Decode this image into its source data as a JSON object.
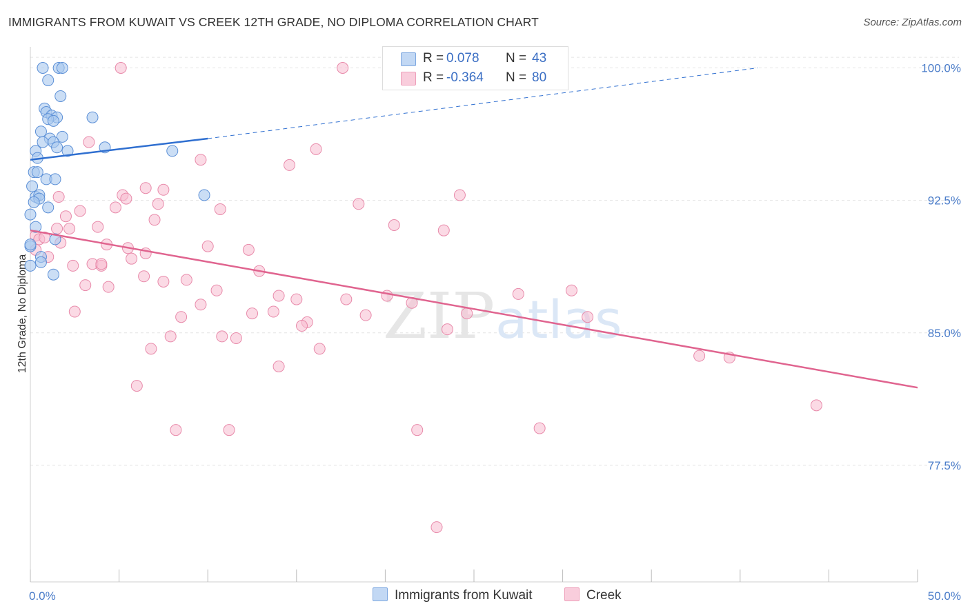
{
  "title": "IMMIGRANTS FROM KUWAIT VS CREEK 12TH GRADE, NO DIPLOMA CORRELATION CHART",
  "source": "Source: ZipAtlas.com",
  "watermark": {
    "zip": "ZIP",
    "atlas": "atlas"
  },
  "legend": {
    "r_label": "R =",
    "n_label": "N =",
    "series": [
      {
        "name": "Immigrants from Kuwait",
        "r": "0.078",
        "n": "43"
      },
      {
        "name": "Creek",
        "r": "-0.364",
        "n": "80"
      }
    ]
  },
  "colors": {
    "kuwait_fill": "#a9c8ef",
    "kuwait_stroke": "#5b8fd6",
    "kuwait_line": "#2f6fd0",
    "creek_fill": "#f7bcd0",
    "creek_stroke": "#e88aaa",
    "creek_line": "#e0648f",
    "tick_text": "#4a7cc9",
    "grid": "#e4e4e4"
  },
  "chart_data": {
    "type": "scatter",
    "title": "IMMIGRANTS FROM KUWAIT VS CREEK 12TH GRADE, NO DIPLOMA CORRELATION CHART",
    "xlabel": "",
    "ylabel": "12th Grade, No Diploma",
    "xlim": [
      0,
      50
    ],
    "ylim": [
      70.9,
      100.8
    ],
    "x_tick_labels": [
      "0.0%",
      "50.0%"
    ],
    "y_ticks": [
      77.5,
      85.0,
      92.5,
      100.0
    ],
    "y_tick_labels": [
      "77.5%",
      "85.0%",
      "92.5%",
      "100.0%"
    ],
    "grid": true,
    "legend_position": "top-center",
    "series": [
      {
        "name": "Immigrants from Kuwait",
        "points": [
          [
            0.7,
            100.0
          ],
          [
            1.6,
            100.0
          ],
          [
            1.8,
            100.0
          ],
          [
            1.0,
            99.3
          ],
          [
            1.7,
            98.4
          ],
          [
            0.8,
            97.7
          ],
          [
            0.9,
            97.5
          ],
          [
            1.2,
            97.3
          ],
          [
            1.5,
            97.2
          ],
          [
            3.5,
            97.2
          ],
          [
            1.0,
            97.1
          ],
          [
            1.3,
            97.0
          ],
          [
            0.6,
            96.4
          ],
          [
            1.1,
            96.0
          ],
          [
            1.8,
            96.1
          ],
          [
            0.7,
            95.8
          ],
          [
            1.3,
            95.8
          ],
          [
            1.5,
            95.5
          ],
          [
            2.1,
            95.3
          ],
          [
            4.2,
            95.5
          ],
          [
            0.3,
            95.3
          ],
          [
            8.0,
            95.3
          ],
          [
            0.4,
            94.9
          ],
          [
            0.2,
            94.1
          ],
          [
            0.4,
            94.1
          ],
          [
            0.9,
            93.7
          ],
          [
            1.4,
            93.7
          ],
          [
            0.1,
            93.3
          ],
          [
            0.3,
            92.7
          ],
          [
            0.5,
            92.8
          ],
          [
            0.5,
            92.6
          ],
          [
            9.8,
            92.8
          ],
          [
            0.2,
            92.4
          ],
          [
            1.0,
            92.1
          ],
          [
            0.0,
            91.7
          ],
          [
            0.3,
            91.0
          ],
          [
            1.4,
            90.3
          ],
          [
            0.0,
            89.9
          ],
          [
            0.6,
            89.3
          ],
          [
            0.6,
            89.0
          ],
          [
            1.3,
            88.3
          ],
          [
            0.0,
            88.8
          ],
          [
            0.0,
            90.0
          ]
        ],
        "trend": {
          "x": [
            0,
            10
          ],
          "y": [
            94.8,
            96.0
          ],
          "extended_x": [
            10,
            41
          ],
          "extended_y": [
            96.0,
            100.0
          ]
        }
      },
      {
        "name": "Creek",
        "points": [
          [
            5.1,
            100.0
          ],
          [
            17.6,
            100.0
          ],
          [
            3.3,
            95.8
          ],
          [
            9.6,
            94.8
          ],
          [
            16.1,
            95.4
          ],
          [
            14.6,
            94.5
          ],
          [
            6.5,
            93.2
          ],
          [
            7.5,
            93.1
          ],
          [
            5.2,
            92.8
          ],
          [
            1.6,
            92.7
          ],
          [
            5.4,
            92.6
          ],
          [
            10.7,
            92.0
          ],
          [
            7.2,
            92.3
          ],
          [
            18.5,
            92.3
          ],
          [
            24.2,
            92.8
          ],
          [
            4.8,
            92.1
          ],
          [
            2.8,
            91.9
          ],
          [
            2.0,
            91.6
          ],
          [
            7.0,
            91.4
          ],
          [
            3.8,
            91.0
          ],
          [
            1.5,
            90.9
          ],
          [
            2.2,
            90.9
          ],
          [
            20.5,
            91.1
          ],
          [
            23.3,
            90.8
          ],
          [
            0.3,
            90.5
          ],
          [
            0.5,
            90.3
          ],
          [
            1.7,
            90.1
          ],
          [
            4.3,
            90.0
          ],
          [
            5.5,
            89.8
          ],
          [
            10.0,
            89.9
          ],
          [
            12.3,
            89.7
          ],
          [
            6.5,
            89.5
          ],
          [
            5.7,
            89.2
          ],
          [
            0.3,
            89.7
          ],
          [
            1.0,
            89.3
          ],
          [
            2.4,
            88.8
          ],
          [
            3.5,
            88.9
          ],
          [
            4.0,
            88.8
          ],
          [
            12.9,
            88.5
          ],
          [
            6.4,
            88.2
          ],
          [
            7.5,
            87.9
          ],
          [
            8.8,
            88.0
          ],
          [
            3.1,
            87.7
          ],
          [
            4.4,
            87.6
          ],
          [
            10.5,
            87.4
          ],
          [
            14.0,
            87.1
          ],
          [
            15.0,
            86.9
          ],
          [
            17.8,
            86.9
          ],
          [
            21.5,
            86.7
          ],
          [
            27.5,
            87.2
          ],
          [
            30.5,
            87.4
          ],
          [
            9.6,
            86.6
          ],
          [
            12.5,
            86.1
          ],
          [
            18.9,
            86.0
          ],
          [
            24.6,
            86.1
          ],
          [
            31.4,
            85.9
          ],
          [
            2.5,
            86.2
          ],
          [
            8.5,
            85.9
          ],
          [
            15.6,
            85.6
          ],
          [
            15.3,
            85.4
          ],
          [
            23.5,
            85.2
          ],
          [
            7.9,
            84.8
          ],
          [
            10.8,
            84.8
          ],
          [
            11.6,
            84.7
          ],
          [
            6.8,
            84.1
          ],
          [
            16.3,
            84.1
          ],
          [
            14.0,
            83.1
          ],
          [
            37.7,
            83.7
          ],
          [
            39.4,
            83.6
          ],
          [
            6.0,
            82.0
          ],
          [
            44.3,
            80.9
          ],
          [
            8.2,
            79.5
          ],
          [
            11.2,
            79.5
          ],
          [
            21.8,
            79.5
          ],
          [
            28.7,
            79.6
          ],
          [
            22.9,
            74.0
          ],
          [
            0.8,
            90.4
          ],
          [
            20.1,
            87.1
          ],
          [
            13.7,
            86.2
          ],
          [
            4.0,
            88.9
          ]
        ],
        "trend": {
          "x": [
            0,
            50
          ],
          "y": [
            90.8,
            81.9
          ]
        }
      }
    ]
  }
}
